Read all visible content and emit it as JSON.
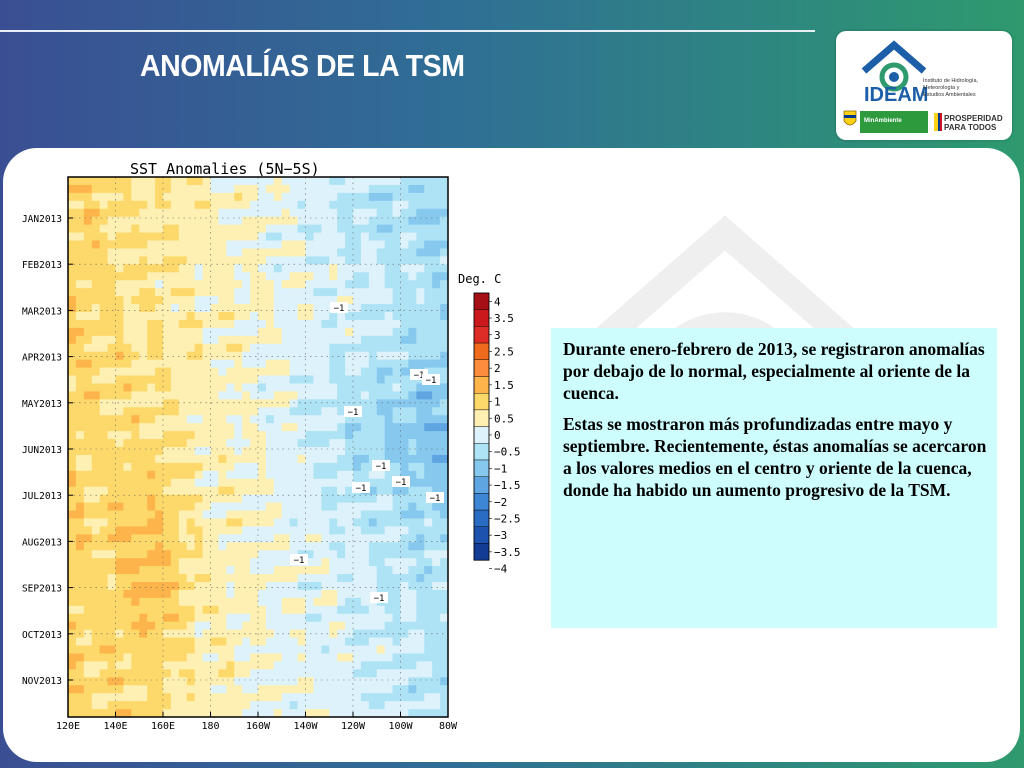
{
  "slide": {
    "title": "ANOMALÍAS DE LA TSM",
    "paragraphs": [
      "Durante enero-febrero de 2013, se registraron anomalías por debajo de lo normal, especialmente al oriente de la cuenca.",
      "Estas se mostraron más profundizadas entre mayo y septiembre. Recientemente, éstas anomalías se acercaron a los valores medios en el centro y oriente de la cuenca, donde ha habido un aumento progresivo de la TSM."
    ]
  },
  "logo": {
    "name": "IDEAM",
    "subtitle_lines": [
      "Instituto de Hidrología,",
      "Meteorología y",
      "Estudios Ambientales"
    ],
    "ministry": "MinAmbiente",
    "slogan_lines": [
      "PROSPERIDAD",
      "PARA TODOS"
    ]
  },
  "colors": {
    "accent_blue": "#3a4f93",
    "accent_green": "#2e9a6e",
    "text_box": "#cdfdfd",
    "ideam_blue": "#1c5fa8",
    "ideam_green": "#2e9a6e"
  },
  "chart_data": {
    "type": "heatmap",
    "title": "SST Anomalies (5N−5S)",
    "x_tick_labels": [
      "120E",
      "140E",
      "160E",
      "180",
      "160W",
      "140W",
      "120W",
      "100W",
      "80W"
    ],
    "y_tick_labels": [
      "JAN2013",
      "FEB2013",
      "MAR2013",
      "APR2013",
      "MAY2013",
      "JUN2013",
      "JUL2013",
      "AUG2013",
      "SEP2013",
      "OCT2013",
      "NOV2013"
    ],
    "colorbar": {
      "label": "Deg. C",
      "levels": [
        "4",
        "3.5",
        "3",
        "2.5",
        "2",
        "1.5",
        "1",
        "0.5",
        "0",
        "−0.5",
        "−1",
        "−1.5",
        "−2",
        "−2.5",
        "−3",
        "−3.5",
        "−4"
      ],
      "colors": [
        "#a50f15",
        "#cb181d",
        "#de2d26",
        "#ef6a1c",
        "#fd8d3c",
        "#fdb54b",
        "#fdd86a",
        "#fdf0b2",
        "#ddf2fa",
        "#aee3f5",
        "#86c8ee",
        "#5fa5e2",
        "#3d86d6",
        "#2a6cc4",
        "#1d52ae",
        "#133c94"
      ]
    },
    "contour_labels": [
      "−1",
      "−1",
      "−1",
      "−1",
      "−1",
      "−1",
      "−1",
      "−1",
      "−1",
      "−1"
    ]
  }
}
